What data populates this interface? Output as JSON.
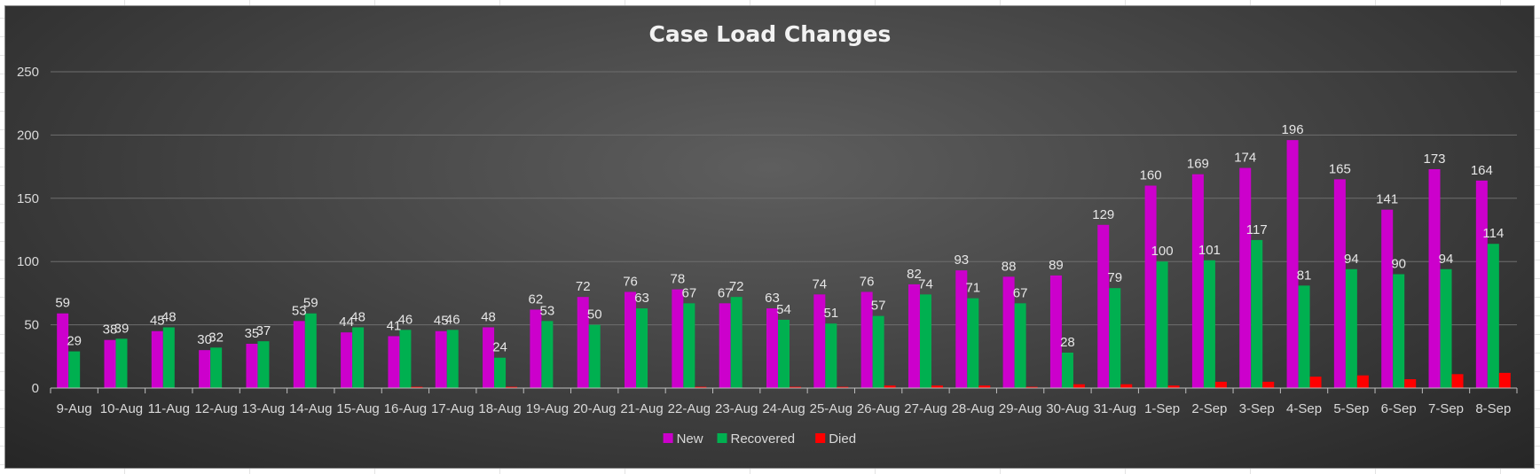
{
  "chart_data": {
    "type": "bar",
    "title": "Case Load Changes",
    "xlabel": "",
    "ylabel": "",
    "ylim": [
      0,
      250
    ],
    "yticks": [
      0,
      50,
      100,
      150,
      200,
      250
    ],
    "grid": true,
    "legend_position": "bottom",
    "categories": [
      "9-Aug",
      "10-Aug",
      "11-Aug",
      "12-Aug",
      "13-Aug",
      "14-Aug",
      "15-Aug",
      "16-Aug",
      "17-Aug",
      "18-Aug",
      "19-Aug",
      "20-Aug",
      "21-Aug",
      "22-Aug",
      "23-Aug",
      "24-Aug",
      "25-Aug",
      "26-Aug",
      "27-Aug",
      "28-Aug",
      "29-Aug",
      "30-Aug",
      "31-Aug",
      "1-Sep",
      "2-Sep",
      "3-Sep",
      "4-Sep",
      "5-Sep",
      "6-Sep",
      "7-Sep",
      "8-Sep"
    ],
    "series": [
      {
        "name": "New",
        "color": "#cc00cc",
        "show_labels": true,
        "values": [
          59,
          38,
          45,
          30,
          35,
          53,
          44,
          41,
          45,
          48,
          62,
          72,
          76,
          78,
          67,
          63,
          74,
          76,
          82,
          93,
          88,
          89,
          129,
          160,
          169,
          174,
          196,
          165,
          141,
          173,
          164
        ]
      },
      {
        "name": "Recovered",
        "color": "#00b050",
        "show_labels": true,
        "values": [
          29,
          39,
          48,
          32,
          37,
          59,
          48,
          46,
          46,
          24,
          53,
          50,
          63,
          67,
          72,
          54,
          51,
          57,
          74,
          71,
          67,
          28,
          79,
          100,
          101,
          117,
          81,
          94,
          90,
          94,
          114
        ]
      },
      {
        "name": "Died",
        "color": "#ff0000",
        "show_labels": false,
        "values": [
          0,
          0,
          0,
          0,
          0,
          0,
          0,
          1,
          0,
          1,
          0,
          0,
          0,
          1,
          0,
          1,
          1,
          2,
          2,
          2,
          1,
          3,
          3,
          2,
          5,
          5,
          9,
          10,
          7,
          11,
          12
        ]
      }
    ]
  }
}
